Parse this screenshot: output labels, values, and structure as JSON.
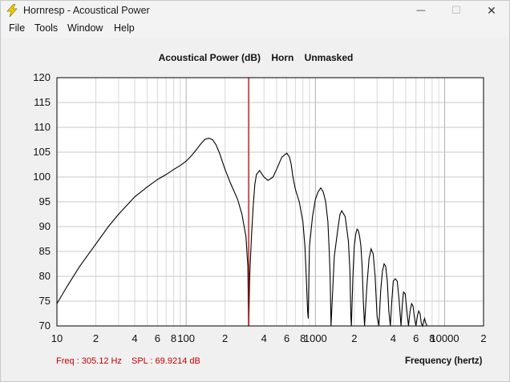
{
  "window": {
    "title": "Hornresp - Acoustical Power",
    "minimize_glyph": "—",
    "maximize_glyph": "☐",
    "close_glyph": "✕"
  },
  "menu": [
    "File",
    "Tools",
    "Window",
    "Help"
  ],
  "chart_title": "Acoustical Power (dB)    Horn    Unmasked",
  "readout": {
    "freq": "Freq : 305.12 Hz",
    "spl": "SPL : 69.9214 dB"
  },
  "colors": {
    "curve": "#000000",
    "cursor": "#c00000",
    "readout": "#c00000",
    "icon": "#f5d000"
  },
  "chart_data": {
    "type": "line",
    "title": "Acoustical Power (dB)    Horn    Unmasked",
    "xlabel": "Frequency (hertz)",
    "ylabel": "",
    "xscale": "log",
    "xlim": [
      10,
      20000
    ],
    "ylim": [
      70,
      120
    ],
    "y_ticks": [
      70,
      75,
      80,
      85,
      90,
      95,
      100,
      105,
      110,
      115,
      120
    ],
    "x_tick_labels": [
      {
        "value": 10,
        "label": "10"
      },
      {
        "value": 20,
        "label": "2"
      },
      {
        "value": 40,
        "label": "4"
      },
      {
        "value": 60,
        "label": "6"
      },
      {
        "value": 80,
        "label": "8"
      },
      {
        "value": 100,
        "label": "100"
      },
      {
        "value": 200,
        "label": "2"
      },
      {
        "value": 400,
        "label": "4"
      },
      {
        "value": 600,
        "label": "6"
      },
      {
        "value": 800,
        "label": "8"
      },
      {
        "value": 1000,
        "label": "1000"
      },
      {
        "value": 2000,
        "label": "2"
      },
      {
        "value": 4000,
        "label": "4"
      },
      {
        "value": 6000,
        "label": "6"
      },
      {
        "value": 8000,
        "label": "8"
      },
      {
        "value": 10000,
        "label": "10000"
      },
      {
        "value": 20000,
        "label": "2"
      }
    ],
    "grid": true,
    "cursor_x": 305.12,
    "series": [
      {
        "x": [
          10,
          12,
          15,
          20,
          25,
          30,
          40,
          50,
          60,
          70,
          80,
          90,
          100,
          110,
          120,
          130,
          140,
          150,
          160,
          170,
          180,
          200,
          220,
          250,
          270,
          290,
          300,
          305,
          310,
          320,
          330,
          340,
          350,
          370,
          400,
          430,
          470,
          500,
          550,
          600,
          630,
          650,
          670,
          700,
          750,
          800,
          830,
          850,
          870,
          880,
          890,
          900,
          950,
          1000,
          1050,
          1100,
          1150,
          1200,
          1250,
          1280,
          1300,
          1320,
          1400,
          1500,
          1550,
          1600,
          1700,
          1800,
          1850,
          1880,
          1900,
          1950,
          2000,
          2050,
          2100,
          2150,
          2200,
          2250,
          2300,
          2350,
          2400,
          2500,
          2600,
          2700,
          2800,
          2900,
          3000,
          3100,
          3200,
          3300,
          3400,
          3500,
          3600,
          3700,
          3800,
          3900,
          4000,
          4150,
          4300,
          4450,
          4600,
          4700,
          4800,
          4950,
          5100,
          5250,
          5400,
          5550,
          5700,
          5850,
          6000,
          6150,
          6300,
          6450,
          6600,
          6750,
          6900,
          7000,
          7100,
          7300,
          7500
        ],
        "y": [
          74.5,
          78,
          82,
          86.5,
          90,
          92.5,
          96,
          98,
          99.5,
          100.5,
          101.5,
          102.3,
          103.2,
          104.3,
          105.5,
          106.7,
          107.6,
          107.8,
          107.5,
          106.5,
          105,
          101.5,
          98.8,
          95.5,
          92.5,
          88,
          82,
          70,
          80,
          88,
          94,
          98.5,
          100.5,
          101.3,
          100,
          99.3,
          100,
          101.5,
          104,
          104.8,
          104,
          102.5,
          100,
          97.5,
          95,
          91,
          86,
          80,
          73,
          71.5,
          80,
          86,
          92,
          95.5,
          97,
          97.8,
          97,
          95,
          91,
          85,
          80,
          70,
          84,
          90,
          92.5,
          93.2,
          92,
          87,
          81,
          72,
          70,
          80,
          86,
          88.5,
          89.5,
          89.2,
          88,
          86,
          82,
          75,
          70,
          78,
          83.5,
          85.5,
          84.5,
          80,
          72,
          70,
          77,
          81,
          82.5,
          82,
          79,
          73,
          70,
          75,
          79,
          79.5,
          79,
          75,
          70,
          74,
          76.8,
          76.5,
          73,
          70,
          73,
          74.5,
          74,
          71.5,
          70,
          72,
          73,
          72.5,
          70.5,
          70,
          71,
          71.5,
          70.8,
          70,
          70
        ]
      }
    ]
  }
}
